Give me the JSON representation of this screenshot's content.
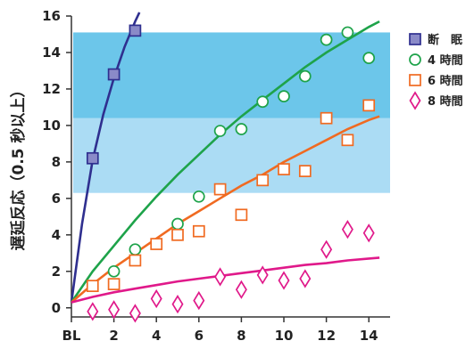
{
  "chart_data": {
    "type": "scatter",
    "ylabel": "遅延反応（0.5 秒以上）",
    "xlabel": "",
    "x_categories": [
      "BL",
      "2",
      "4",
      "6",
      "8",
      "10",
      "12",
      "14"
    ],
    "x_ticks": [
      0,
      2,
      4,
      6,
      8,
      10,
      12,
      14
    ],
    "xlim": [
      0,
      15
    ],
    "ylim": [
      -0.5,
      16
    ],
    "y_ticks": [
      0,
      2,
      4,
      6,
      8,
      10,
      12,
      14,
      16
    ],
    "bands": [
      {
        "from": 6.3,
        "to": 10.4,
        "color": "#abdcf4"
      },
      {
        "from": 10.4,
        "to": 15.1,
        "color": "#6cc6ea"
      }
    ],
    "legend_position": "right",
    "series": [
      {
        "name": "断　眠",
        "marker": "square",
        "color": "#2f2f8f",
        "fill": "#8a8ac8",
        "x": [
          1,
          2,
          3
        ],
        "y": [
          8.2,
          12.8,
          15.2
        ],
        "fit": [
          [
            0,
            0.3
          ],
          [
            0.5,
            4.6
          ],
          [
            1,
            8.1
          ],
          [
            1.5,
            10.6
          ],
          [
            2,
            12.6
          ],
          [
            2.5,
            14.3
          ],
          [
            3,
            15.7
          ],
          [
            3.2,
            16.2
          ]
        ]
      },
      {
        "name": "4 時間",
        "marker": "circle",
        "color": "#1ea34a",
        "fill": "#ffffff",
        "x": [
          2,
          3,
          5,
          6,
          7,
          8,
          9,
          10,
          11,
          12,
          13,
          14
        ],
        "y": [
          2.0,
          3.2,
          4.6,
          6.1,
          9.7,
          9.8,
          11.3,
          11.6,
          12.7,
          14.7,
          15.1,
          13.7
        ],
        "fit": [
          [
            0,
            0.3
          ],
          [
            1,
            2.0
          ],
          [
            2,
            3.4
          ],
          [
            3,
            4.8
          ],
          [
            4,
            6.1
          ],
          [
            5,
            7.3
          ],
          [
            6,
            8.4
          ],
          [
            7,
            9.5
          ],
          [
            8,
            10.5
          ],
          [
            9,
            11.4
          ],
          [
            10,
            12.3
          ],
          [
            11,
            13.2
          ],
          [
            12,
            14.0
          ],
          [
            13,
            14.7
          ],
          [
            14,
            15.4
          ],
          [
            14.5,
            15.7
          ]
        ]
      },
      {
        "name": "6 時間",
        "marker": "square",
        "color": "#f06a21",
        "fill": "#ffffff",
        "x": [
          1,
          2,
          3,
          4,
          5,
          6,
          7,
          8,
          9,
          10,
          11,
          12,
          13,
          14
        ],
        "y": [
          1.2,
          1.3,
          2.6,
          3.5,
          4.0,
          4.2,
          6.5,
          5.1,
          7.0,
          7.6,
          7.5,
          10.4,
          9.2,
          11.1
        ],
        "fit": [
          [
            0,
            0.3
          ],
          [
            1,
            1.3
          ],
          [
            2,
            2.2
          ],
          [
            3,
            3.0
          ],
          [
            4,
            3.8
          ],
          [
            5,
            4.6
          ],
          [
            6,
            5.3
          ],
          [
            7,
            6.0
          ],
          [
            8,
            6.7
          ],
          [
            9,
            7.3
          ],
          [
            10,
            8.0
          ],
          [
            11,
            8.6
          ],
          [
            12,
            9.2
          ],
          [
            13,
            9.8
          ],
          [
            14,
            10.3
          ],
          [
            14.5,
            10.5
          ]
        ]
      },
      {
        "name": "8 時間",
        "marker": "diamond",
        "color": "#e0198a",
        "fill": "#ffffff",
        "x": [
          1,
          2,
          3,
          4,
          5,
          6,
          7,
          8,
          9,
          10,
          11,
          12,
          13,
          14
        ],
        "y": [
          -0.2,
          -0.1,
          -0.3,
          0.5,
          0.2,
          0.4,
          1.7,
          1.0,
          1.8,
          1.5,
          1.6,
          3.2,
          4.3,
          4.1
        ],
        "fit": [
          [
            0,
            0.3
          ],
          [
            1,
            0.6
          ],
          [
            2,
            0.85
          ],
          [
            3,
            1.05
          ],
          [
            4,
            1.25
          ],
          [
            5,
            1.45
          ],
          [
            6,
            1.6
          ],
          [
            7,
            1.75
          ],
          [
            8,
            1.9
          ],
          [
            9,
            2.05
          ],
          [
            10,
            2.2
          ],
          [
            11,
            2.35
          ],
          [
            12,
            2.45
          ],
          [
            13,
            2.6
          ],
          [
            14,
            2.7
          ],
          [
            14.5,
            2.75
          ]
        ]
      }
    ]
  }
}
